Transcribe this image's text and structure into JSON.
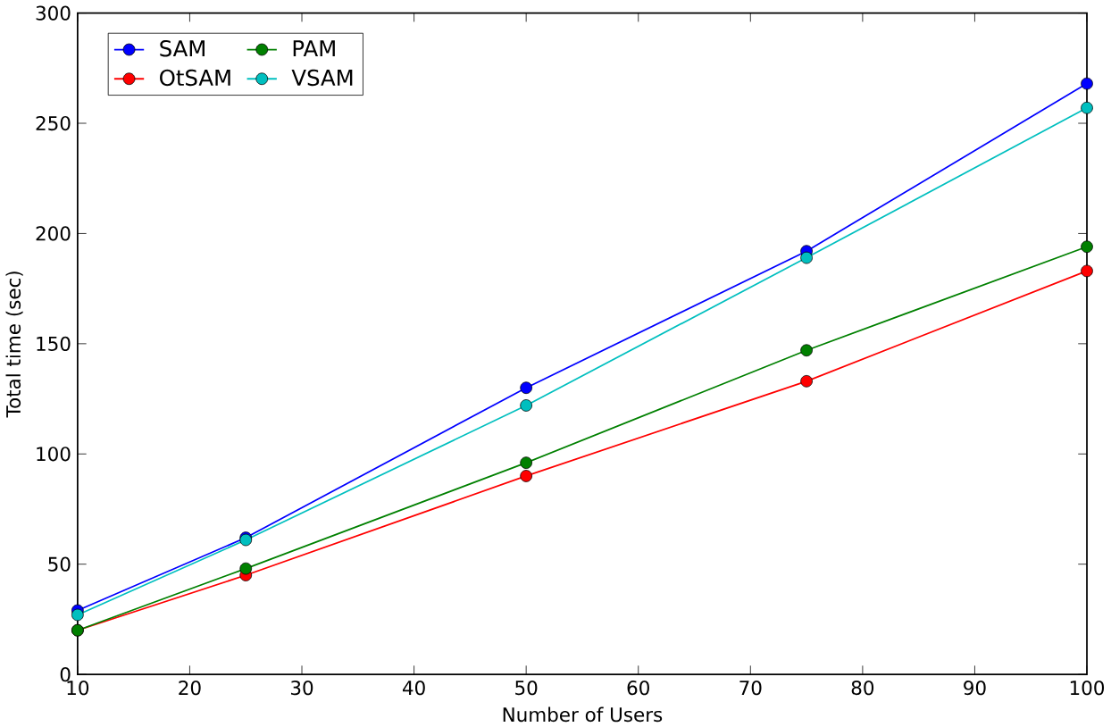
{
  "chart_data": {
    "type": "line",
    "xlabel": "Number of Users",
    "ylabel": "Total time (sec)",
    "x": [
      10,
      25,
      50,
      75,
      100
    ],
    "series": [
      {
        "name": "SAM",
        "color": "#0000ff",
        "values": [
          29,
          62,
          130,
          192,
          268
        ]
      },
      {
        "name": "OtSAM",
        "color": "#ff0000",
        "values": [
          20,
          45,
          90,
          133,
          183
        ]
      },
      {
        "name": "PAM",
        "color": "#008000",
        "values": [
          20,
          48,
          96,
          147,
          194
        ]
      },
      {
        "name": "VSAM",
        "color": "#00bfbf",
        "values": [
          27,
          61,
          122,
          189,
          257
        ]
      }
    ],
    "xlim": [
      10,
      100
    ],
    "ylim": [
      0,
      300
    ],
    "xticks": [
      10,
      20,
      30,
      40,
      50,
      60,
      70,
      80,
      90,
      100
    ],
    "yticks": [
      0,
      50,
      100,
      150,
      200,
      250,
      300
    ],
    "legend": "top left",
    "marker": "circle",
    "line_style": "solid",
    "grid": false
  }
}
